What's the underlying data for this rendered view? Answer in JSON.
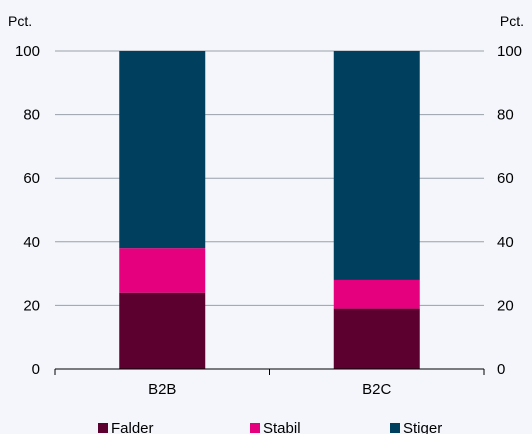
{
  "chart_data": {
    "type": "bar",
    "stacked": true,
    "categories": [
      "B2B",
      "B2C"
    ],
    "series": [
      {
        "name": "Falder",
        "values": [
          24,
          19
        ],
        "color": "#5c0030"
      },
      {
        "name": "Stabil",
        "values": [
          14,
          9
        ],
        "color": "#e5007e"
      },
      {
        "name": "Stiger",
        "values": [
          62,
          72
        ],
        "color": "#00405e"
      }
    ],
    "y_unit_left": "Pct.",
    "y_unit_right": "Pct.",
    "ylim": [
      0,
      100
    ],
    "yticks": [
      0,
      20,
      40,
      60,
      80,
      100
    ],
    "grid": true,
    "legend_position": "bottom"
  }
}
